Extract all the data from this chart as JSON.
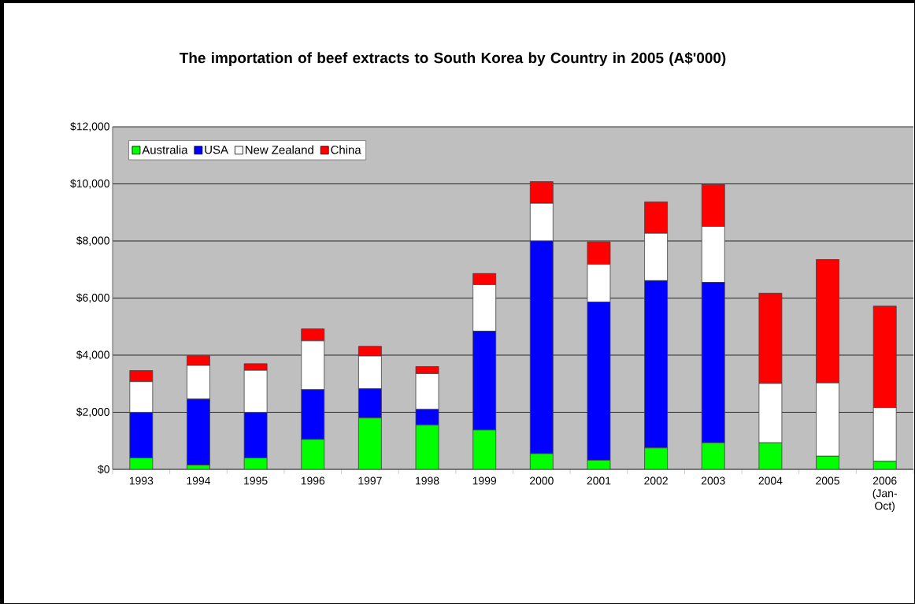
{
  "chart_data": {
    "type": "bar",
    "stacked": true,
    "title": "The importation of beef extracts to South Korea by Country in 2005 (A$'000)",
    "categories": [
      "1993",
      "1994",
      "1995",
      "1996",
      "1997",
      "1998",
      "1999",
      "2000",
      "2001",
      "2002",
      "2003",
      "2004",
      "2005",
      "2006 (Jan-Oct)"
    ],
    "series": [
      {
        "name": "Australia",
        "color": "#00ff00",
        "values": [
          400,
          150,
          400,
          1050,
          1800,
          1550,
          1380,
          550,
          320,
          750,
          930,
          930,
          460,
          280
        ]
      },
      {
        "name": "USA",
        "color": "#0000ff",
        "values": [
          1590,
          2310,
          1590,
          1740,
          1020,
          550,
          3460,
          7450,
          5540,
          5860,
          5620,
          0,
          0,
          0
        ]
      },
      {
        "name": "New Zealand",
        "color": "#ffffff",
        "values": [
          1080,
          1180,
          1480,
          1710,
          1150,
          1250,
          1630,
          1320,
          1320,
          1660,
          1960,
          2080,
          2570,
          1880
        ]
      },
      {
        "name": "China",
        "color": "#ff0000",
        "values": [
          390,
          340,
          230,
          420,
          340,
          250,
          390,
          760,
          790,
          1100,
          1470,
          3160,
          4320,
          3560
        ]
      }
    ],
    "ylim": [
      0,
      12000
    ],
    "yticks": [
      {
        "value": 0,
        "label": "$0"
      },
      {
        "value": 2000,
        "label": "$2,000"
      },
      {
        "value": 4000,
        "label": "$4,000"
      },
      {
        "value": 6000,
        "label": "$6,000"
      },
      {
        "value": 8000,
        "label": "$8,000"
      },
      {
        "value": 10000,
        "label": "$10,000"
      },
      {
        "value": 12000,
        "label": "$12,000"
      }
    ],
    "grid": "y",
    "legend": "top left"
  }
}
